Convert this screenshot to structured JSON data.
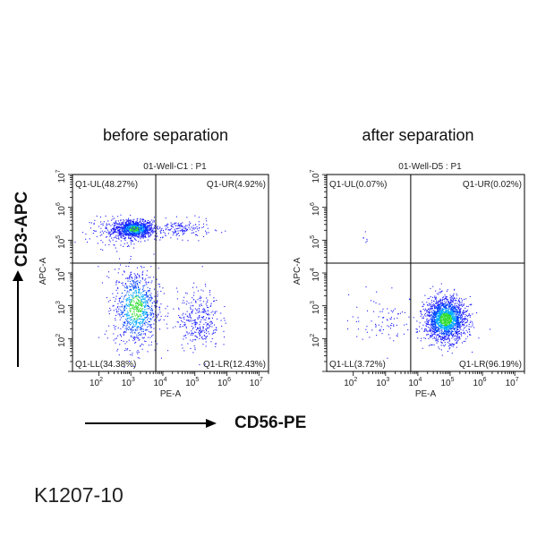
{
  "figure": {
    "y_marker": "CD3-APC",
    "x_marker": "CD56-PE",
    "footer": "K1207-10"
  },
  "chart_data": [
    {
      "type": "scatter",
      "title": "before separation",
      "subtitle": "01-Well-C1 : P1",
      "xlabel": "PE-A",
      "ylabel": "APC-A",
      "xscale": "log",
      "yscale": "log",
      "xlim": [
        15,
        20000000
      ],
      "ylim": [
        10,
        10000000
      ],
      "xticks": [
        "10^2",
        "10^3",
        "10^4",
        "10^5",
        "10^6",
        "10^7"
      ],
      "yticks": [
        "10^2",
        "10^3",
        "10^4",
        "10^5",
        "10^6",
        "10^7"
      ],
      "quadrant_gate": {
        "x": 6000,
        "y": 20000
      },
      "quadrants": {
        "UL": "Q1-UL(48.27%)",
        "UR": "Q1-UR(4.92%)",
        "LL": "Q1-LL(34.38%)",
        "LR": "Q1-LR(12.43%)"
      },
      "populations": [
        {
          "log_x": 3.1,
          "log_y": 5.35,
          "sd_x": 0.3,
          "sd_y": 0.13,
          "events": 900
        },
        {
          "log_x": 2.8,
          "log_y": 5.3,
          "sd_x": 0.55,
          "sd_y": 0.2,
          "events": 300
        },
        {
          "log_x": 4.6,
          "log_y": 5.35,
          "sd_x": 0.45,
          "sd_y": 0.14,
          "events": 160
        },
        {
          "log_x": 3.15,
          "log_y": 2.95,
          "sd_x": 0.35,
          "sd_y": 0.6,
          "events": 900
        },
        {
          "log_x": 5.1,
          "log_y": 2.6,
          "sd_x": 0.33,
          "sd_y": 0.45,
          "events": 330
        }
      ],
      "colors": {
        "sparse": "#1a1aff",
        "mid": "#00aaff",
        "dense": "#33dd33"
      }
    },
    {
      "type": "scatter",
      "title": "after separation",
      "subtitle": "01-Well-D5 : P1",
      "xlabel": "PE-A",
      "ylabel": "APC-A",
      "xscale": "log",
      "yscale": "log",
      "xlim": [
        15,
        20000000
      ],
      "ylim": [
        10,
        10000000
      ],
      "xticks": [
        "10^2",
        "10^3",
        "10^4",
        "10^5",
        "10^6",
        "10^7"
      ],
      "yticks": [
        "10^2",
        "10^3",
        "10^4",
        "10^5",
        "10^6",
        "10^7"
      ],
      "quadrant_gate": {
        "x": 6000,
        "y": 20000
      },
      "quadrants": {
        "UL": "Q1-UL(0.07%)",
        "UR": "Q1-UR(0.02%)",
        "LL": "Q1-LL(3.72%)",
        "LR": "Q1-LR(96.19%)"
      },
      "populations": [
        {
          "log_x": 4.85,
          "log_y": 2.6,
          "sd_x": 0.32,
          "sd_y": 0.33,
          "events": 1800
        },
        {
          "log_x": 3.0,
          "log_y": 2.6,
          "sd_x": 0.55,
          "sd_y": 0.35,
          "events": 90
        },
        {
          "log_x": 2.4,
          "log_y": 5.1,
          "sd_x": 0.15,
          "sd_y": 0.12,
          "events": 6
        }
      ],
      "colors": {
        "sparse": "#1a1aff",
        "mid": "#00aaff",
        "dense": "#33dd33"
      }
    }
  ]
}
